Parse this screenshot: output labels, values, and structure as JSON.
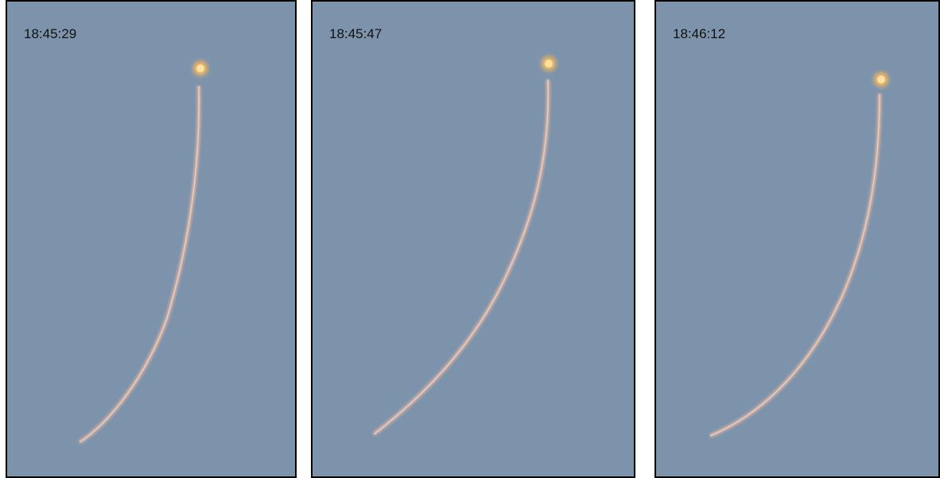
{
  "panels": [
    {
      "label": "18:45:29"
    },
    {
      "label": "18:45:47"
    },
    {
      "label": "18:46:12"
    }
  ]
}
